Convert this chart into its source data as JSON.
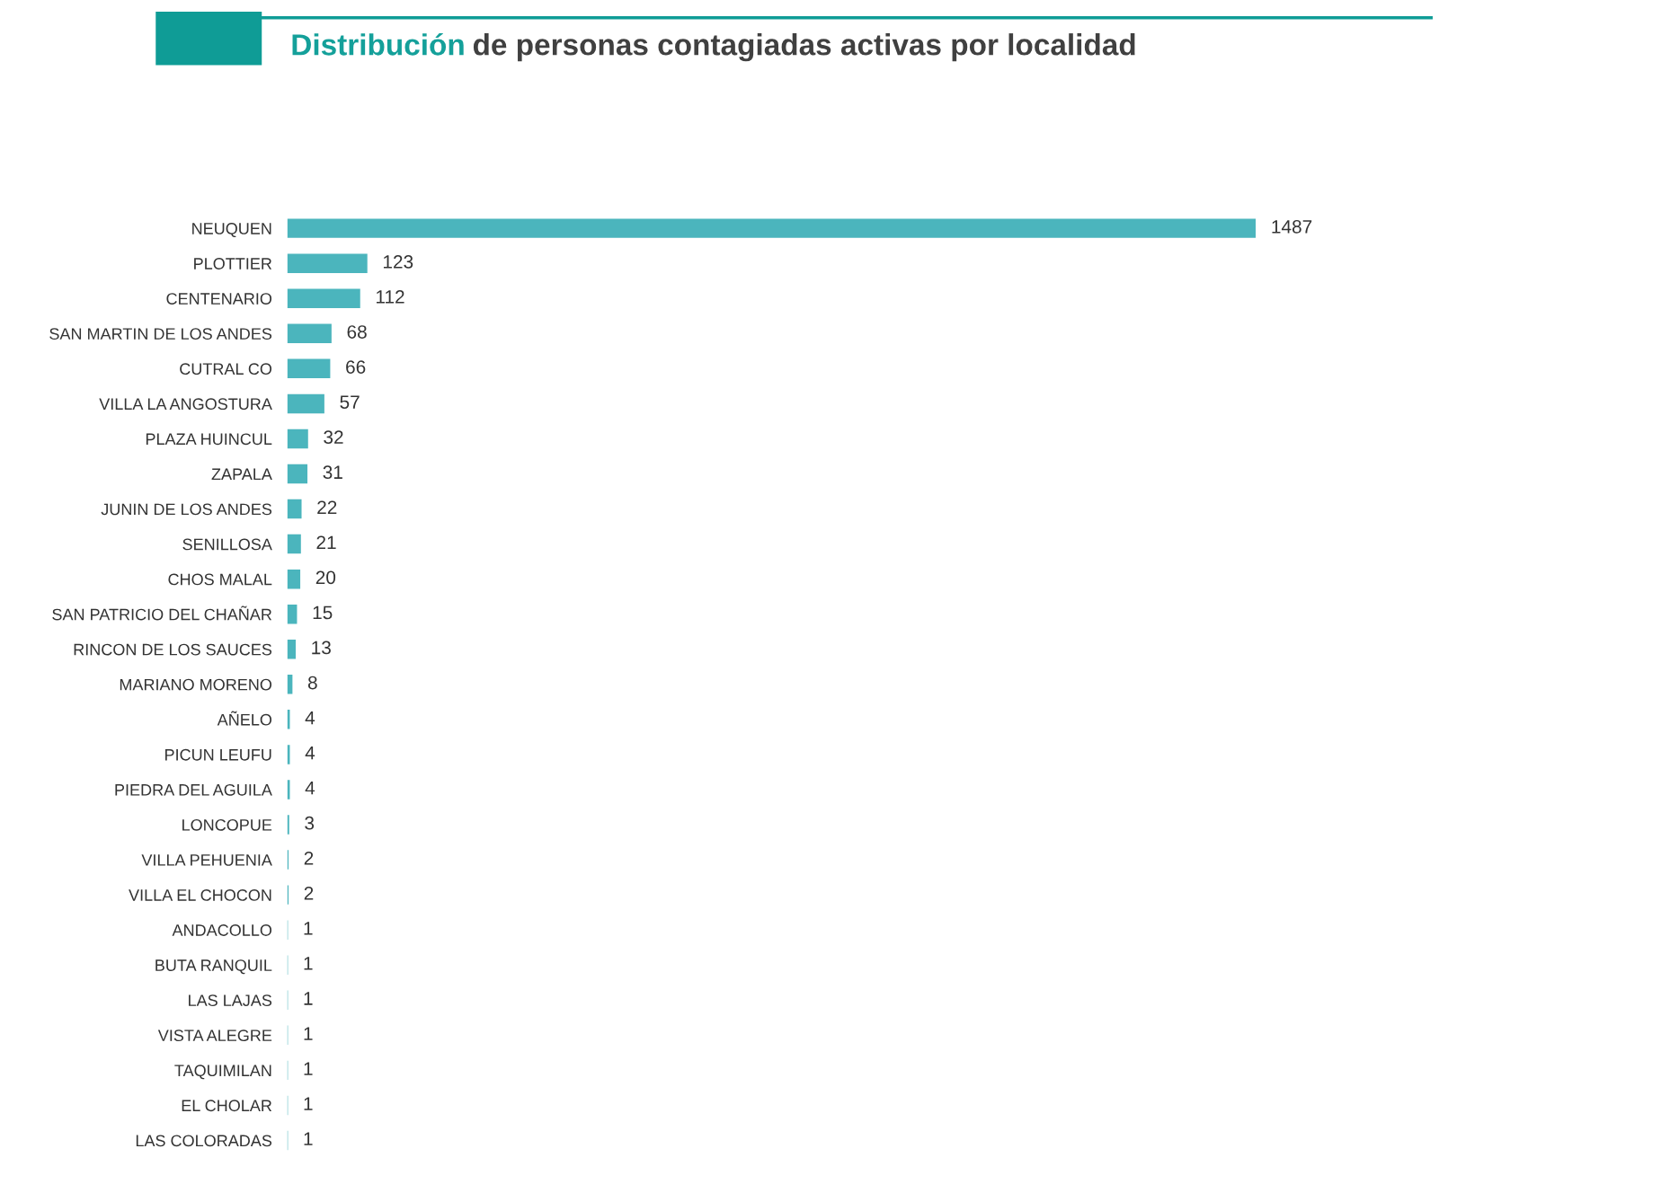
{
  "chart_data": {
    "type": "bar",
    "orientation": "horizontal",
    "title": "Distribución de personas contagiadas activas por localidad",
    "categories": [
      "NEUQUEN",
      "PLOTTIER",
      "CENTENARIO",
      "SAN MARTIN DE LOS ANDES",
      "CUTRAL CO",
      "VILLA LA ANGOSTURA",
      "PLAZA HUINCUL",
      "ZAPALA",
      "JUNIN DE LOS ANDES",
      "SENILLOSA",
      "CHOS MALAL",
      "SAN PATRICIO DEL CHAÑAR",
      "RINCON DE LOS SAUCES",
      "MARIANO MORENO",
      "AÑELO",
      "PICUN LEUFU",
      "PIEDRA DEL AGUILA",
      "LONCOPUE",
      "VILLA PEHUENIA",
      "VILLA EL CHOCON",
      "ANDACOLLO",
      "BUTA RANQUIL",
      "LAS LAJAS",
      "VISTA ALEGRE",
      "TAQUIMILAN",
      "EL CHOLAR",
      "LAS COLORADAS"
    ],
    "values": [
      1487,
      123,
      112,
      68,
      66,
      57,
      32,
      31,
      22,
      21,
      20,
      15,
      13,
      8,
      4,
      4,
      4,
      3,
      2,
      2,
      1,
      1,
      1,
      1,
      1,
      1,
      1
    ],
    "color": "#4bb5bd",
    "data_labels": true,
    "grid": false,
    "legend": false,
    "tick_labels": "y"
  }
}
